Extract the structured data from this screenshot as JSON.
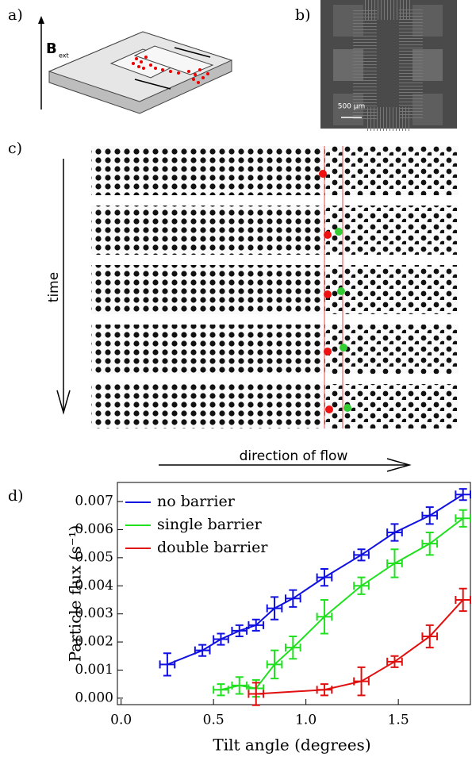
{
  "panels": {
    "a": {
      "label": "a)",
      "field": "B",
      "field_sub": "ext"
    },
    "b": {
      "label": "b)",
      "scale_bar": "500 µm"
    },
    "c": {
      "label": "c)",
      "time_axis": "time",
      "flow_axis": "direction of flow"
    },
    "d": {
      "label": "d)"
    }
  },
  "chart_data": {
    "type": "line",
    "xlabel": "Tilt angle (degrees)",
    "ylabel": "Particle flux (s⁻¹)",
    "xlim": [
      -0.02,
      1.89
    ],
    "ylim": [
      -0.00023,
      0.00768
    ],
    "xticks": [
      {
        "value": 0,
        "label": "0.0"
      },
      {
        "value": 0.5,
        "label": "0.5"
      },
      {
        "value": 1,
        "label": "1.0"
      },
      {
        "value": 1.5,
        "label": "1.5"
      }
    ],
    "yticks": [
      {
        "value": 0,
        "label": "0.000"
      },
      {
        "value": 0.001,
        "label": "0.001"
      },
      {
        "value": 0.002,
        "label": "0.002"
      },
      {
        "value": 0.003,
        "label": "0.003"
      },
      {
        "value": 0.004,
        "label": "0.004"
      },
      {
        "value": 0.005,
        "label": "0.005"
      },
      {
        "value": 0.006,
        "label": "0.006"
      },
      {
        "value": 0.007,
        "label": "0.007"
      }
    ],
    "legend": "upper left",
    "series": [
      {
        "name": "no barrier",
        "color": "#1010e0",
        "x": [
          0.25,
          0.44,
          0.54,
          0.64,
          0.73,
          0.83,
          0.93,
          1.1,
          1.3,
          1.48,
          1.67,
          1.85
        ],
        "values": [
          0.0012,
          0.0017,
          0.0021,
          0.0024,
          0.0026,
          0.0032,
          0.00355,
          0.0043,
          0.0051,
          0.0059,
          0.0065,
          0.00725
        ],
        "yerr": [
          0.0004,
          0.0002,
          0.0002,
          0.0002,
          0.0002,
          0.0004,
          0.0003,
          0.0003,
          0.0002,
          0.0003,
          0.0003,
          0.0002
        ],
        "xerr": [
          0.04,
          0.04,
          0.04,
          0.04,
          0.04,
          0.04,
          0.04,
          0.04,
          0.04,
          0.04,
          0.04,
          0.04
        ]
      },
      {
        "name": "single barrier",
        "color": "#20e020",
        "x": [
          0.54,
          0.64,
          0.73,
          0.83,
          0.93,
          1.1,
          1.3,
          1.48,
          1.67,
          1.85
        ],
        "values": [
          0.0003,
          0.00045,
          0.00035,
          0.0012,
          0.0018,
          0.0029,
          0.004,
          0.0048,
          0.0055,
          0.0064
        ],
        "yerr": [
          0.0002,
          0.0003,
          0.0003,
          0.0005,
          0.0004,
          0.0006,
          0.0003,
          0.0005,
          0.0004,
          0.0003
        ],
        "xerr": [
          0.04,
          0.04,
          0.04,
          0.04,
          0.04,
          0.04,
          0.04,
          0.04,
          0.04,
          0.04
        ]
      },
      {
        "name": "double barrier",
        "color": "#e01010",
        "x": [
          0.73,
          1.1,
          1.3,
          1.48,
          1.67,
          1.85
        ],
        "values": [
          0.00015,
          0.0003,
          0.0006,
          0.0013,
          0.0022,
          0.0035
        ],
        "yerr": [
          0.0004,
          0.0002,
          0.0005,
          0.0002,
          0.0004,
          0.0004
        ],
        "xerr": [
          0.04,
          0.04,
          0.04,
          0.04,
          0.04,
          0.04
        ]
      }
    ]
  }
}
